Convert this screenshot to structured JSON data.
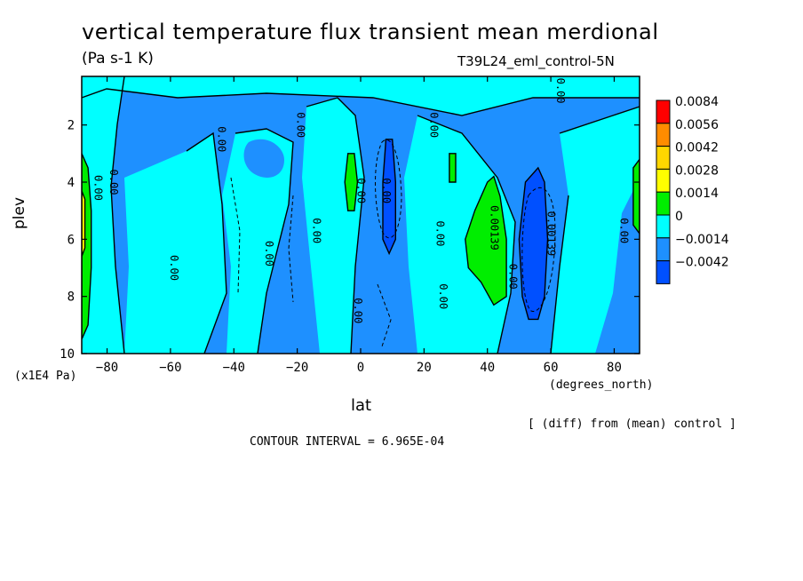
{
  "chart_data": {
    "type": "heatmap",
    "title": "vertical temperature flux transient mean merdional",
    "units": "(Pa s-1 K)",
    "run_label": "T39L24_eml_control-5N",
    "xlabel": "lat",
    "x_units": "(degrees_north)",
    "ylabel": "plev",
    "y_units": "(x1E4 Pa)",
    "footer_right": "[ (diff) from (mean) control ]",
    "contour_interval_text": "CONTOUR INTERVAL = 6.965E-04",
    "xlim": [
      -88,
      88
    ],
    "ylim": [
      10,
      0.3
    ],
    "x_ticks": [
      -80,
      -60,
      -40,
      -20,
      0,
      20,
      40,
      60,
      80
    ],
    "x_tick_labels": [
      "−80",
      "−60",
      "−40",
      "−20",
      "0",
      "20",
      "40",
      "60",
      "80"
    ],
    "y_ticks": [
      2,
      4,
      6,
      8,
      10
    ],
    "y_tick_labels": [
      "2",
      "4",
      "6",
      "8",
      "10"
    ],
    "colorbar": {
      "levels": [
        {
          "label": "0.0084",
          "color": "#ff0000"
        },
        {
          "label": "0.0056",
          "color": "#ff8c00"
        },
        {
          "label": "0.0042",
          "color": "#ffd700"
        },
        {
          "label": "0.0028",
          "color": "#ffff00"
        },
        {
          "label": "0.0014",
          "color": "#00ee00"
        },
        {
          "label": "0",
          "color": "#00ffff"
        },
        {
          "label": "−0.0014",
          "color": "#1e90ff"
        },
        {
          "label": "−0.0042",
          "color": "#0050ff"
        }
      ]
    },
    "regions": [
      {
        "level": "0.0014",
        "points": [
          [
            -88,
            3
          ],
          [
            -86,
            3.5
          ],
          [
            -85,
            5
          ],
          [
            -85,
            7
          ],
          [
            -86,
            9
          ],
          [
            -88,
            9.5
          ]
        ]
      },
      {
        "level": "0.0028",
        "points": [
          [
            -88,
            4.3
          ],
          [
            -87,
            4.6
          ],
          [
            -87,
            6.3
          ],
          [
            -88,
            6.6
          ]
        ]
      },
      {
        "level": "0.0014",
        "points": [
          [
            88,
            3.2
          ],
          [
            86,
            3.5
          ],
          [
            86,
            5.5
          ],
          [
            88,
            5.8
          ]
        ]
      },
      {
        "level": "0.0014",
        "points": [
          [
            -4,
            3
          ],
          [
            -2,
            3
          ],
          [
            -1,
            4
          ],
          [
            -2,
            5
          ],
          [
            -4,
            5
          ],
          [
            -5,
            4
          ]
        ]
      },
      {
        "level": "0.0014",
        "points": [
          [
            28,
            3
          ],
          [
            30,
            3
          ],
          [
            30,
            4
          ],
          [
            28,
            4
          ]
        ]
      },
      {
        "level": "0.0014",
        "points": [
          [
            36,
            5
          ],
          [
            40,
            4
          ],
          [
            42,
            3.8
          ],
          [
            44,
            4.5
          ],
          [
            46,
            6
          ],
          [
            46,
            8
          ],
          [
            42,
            8.3
          ],
          [
            38,
            7.5
          ],
          [
            34,
            7
          ],
          [
            33,
            6
          ]
        ]
      },
      {
        "level": "-0.0042",
        "points": [
          [
            8,
            2.5
          ],
          [
            10,
            2.5
          ],
          [
            11,
            4
          ],
          [
            11,
            6
          ],
          [
            9,
            6.5
          ],
          [
            7,
            6
          ],
          [
            7,
            4
          ]
        ]
      },
      {
        "level": "-0.0042",
        "points": [
          [
            52,
            4
          ],
          [
            56,
            3.5
          ],
          [
            58,
            4
          ],
          [
            59,
            6
          ],
          [
            58,
            8
          ],
          [
            56,
            8.8
          ],
          [
            53,
            8.8
          ],
          [
            51,
            8
          ],
          [
            50,
            6
          ]
        ]
      }
    ],
    "contour_labels": [
      {
        "text": "0.00",
        "lat": -84,
        "plev": 4.2
      },
      {
        "text": "0.00",
        "lat": -79,
        "plev": 4.0
      },
      {
        "text": "0.00",
        "lat": -60,
        "plev": 7.0
      },
      {
        "text": "0.00",
        "lat": -45,
        "plev": 2.5
      },
      {
        "text": "0.00",
        "lat": -30,
        "plev": 6.5
      },
      {
        "text": "0.00",
        "lat": -20,
        "plev": 2.0
      },
      {
        "text": "0.00",
        "lat": -15,
        "plev": 5.7
      },
      {
        "text": "0.00",
        "lat": -2,
        "plev": 8.5
      },
      {
        "text": "0.00",
        "lat": -1,
        "plev": 4.3
      },
      {
        "text": "0.00",
        "lat": 7,
        "plev": 4.3
      },
      {
        "text": "0.00",
        "lat": 22,
        "plev": 2.0
      },
      {
        "text": "0.00",
        "lat": 24,
        "plev": 5.8
      },
      {
        "text": "0.00",
        "lat": 25,
        "plev": 8.0
      },
      {
        "text": "0.00139",
        "lat": 41,
        "plev": 5.6
      },
      {
        "text": "0.00",
        "lat": 47,
        "plev": 7.3
      },
      {
        "text": "0.00139",
        "lat": 59,
        "plev": 5.8
      },
      {
        "text": "0.00",
        "lat": 62,
        "plev": 0.8
      },
      {
        "text": "0.00",
        "lat": 82,
        "plev": 5.7
      }
    ]
  }
}
